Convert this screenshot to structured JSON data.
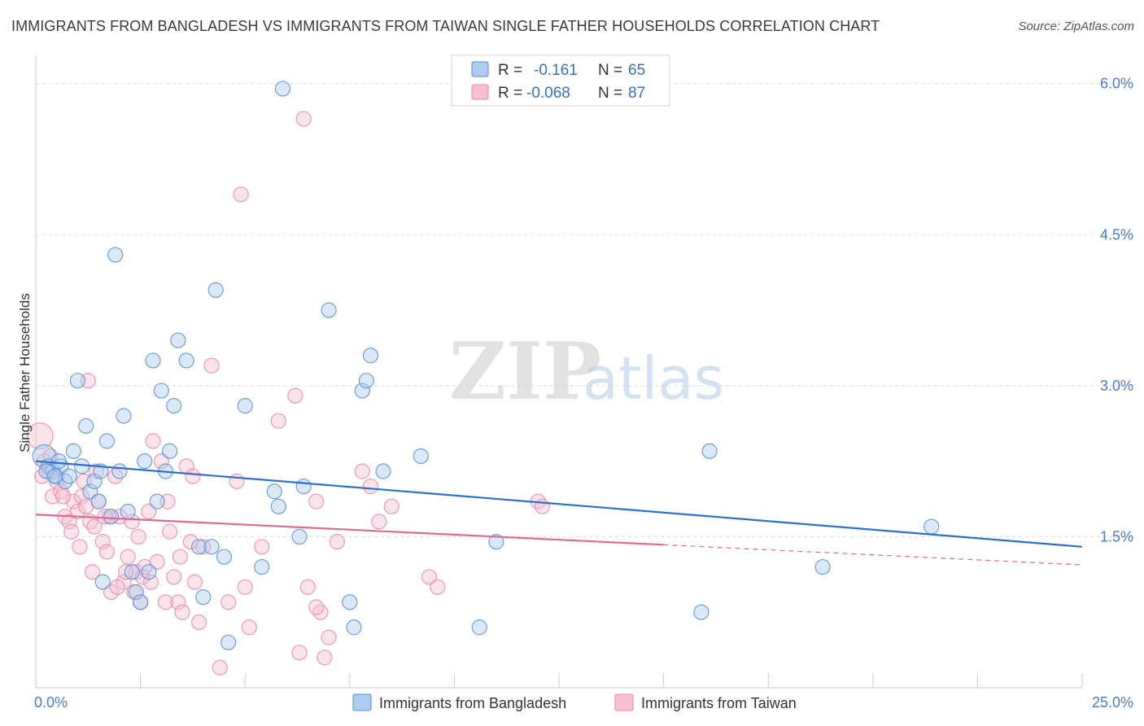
{
  "title": "IMMIGRANTS FROM BANGLADESH VS IMMIGRANTS FROM TAIWAN SINGLE FATHER HOUSEHOLDS CORRELATION CHART",
  "source": "Source: ZipAtlas.com",
  "watermark": {
    "zip": "ZIP",
    "atlas": "atlas"
  },
  "colors": {
    "blue": "#5b8fd6",
    "blue_fill": "#aecbf0",
    "blue_line": "#2d6fd0",
    "pink": "#e98aaa",
    "pink_fill": "#f6c0d2",
    "pink_line": "#e06896"
  },
  "legend": {
    "rows": [
      {
        "r_label": "R =",
        "r_value": "-0.161",
        "n_label": "N =",
        "n_value": "65"
      },
      {
        "r_label": "R =",
        "r_value": "-0.068",
        "n_label": "N =",
        "n_value": "87"
      }
    ]
  },
  "chart_data": {
    "type": "scatter",
    "ylabel": "Single Father Households",
    "xlim": [
      0,
      25
    ],
    "ylim": [
      0,
      6.2
    ],
    "x_tick_labels": [
      "0.0%",
      "25.0%"
    ],
    "y_ticks": [
      1.5,
      3.0,
      4.5,
      6.0
    ],
    "y_tick_labels": [
      "1.5%",
      "3.0%",
      "4.5%",
      "6.0%"
    ],
    "legend_placement": "top-center",
    "grid": true,
    "series": [
      {
        "name": "Immigrants from Bangladesh",
        "color": "#5b8fd6",
        "trend": {
          "x0": 0,
          "y0": 2.25,
          "x1": 25,
          "y1": 1.4,
          "dashed_from": null
        },
        "points": [
          [
            0.2,
            2.3
          ],
          [
            0.3,
            2.2
          ],
          [
            0.4,
            2.15
          ],
          [
            0.5,
            2.1
          ],
          [
            0.6,
            2.2
          ],
          [
            0.7,
            2.05
          ],
          [
            0.8,
            2.1
          ],
          [
            0.9,
            2.35
          ],
          [
            1.0,
            3.05
          ],
          [
            1.1,
            2.2
          ],
          [
            1.2,
            2.6
          ],
          [
            1.3,
            1.95
          ],
          [
            1.4,
            2.05
          ],
          [
            1.5,
            1.85
          ],
          [
            1.6,
            1.05
          ],
          [
            1.7,
            2.45
          ],
          [
            1.8,
            1.7
          ],
          [
            1.9,
            4.3
          ],
          [
            2.0,
            2.15
          ],
          [
            2.1,
            2.7
          ],
          [
            2.2,
            1.75
          ],
          [
            2.3,
            1.15
          ],
          [
            2.4,
            0.95
          ],
          [
            2.5,
            0.85
          ],
          [
            2.6,
            2.25
          ],
          [
            2.7,
            1.15
          ],
          [
            2.8,
            3.25
          ],
          [
            2.9,
            1.85
          ],
          [
            3.0,
            2.95
          ],
          [
            3.1,
            2.15
          ],
          [
            3.2,
            2.35
          ],
          [
            3.3,
            2.8
          ],
          [
            3.4,
            3.45
          ],
          [
            3.6,
            3.25
          ],
          [
            3.9,
            1.4
          ],
          [
            4.0,
            0.9
          ],
          [
            4.2,
            1.4
          ],
          [
            4.3,
            3.95
          ],
          [
            4.5,
            1.3
          ],
          [
            4.6,
            0.45
          ],
          [
            5.0,
            2.8
          ],
          [
            5.4,
            1.2
          ],
          [
            5.7,
            1.95
          ],
          [
            5.8,
            1.8
          ],
          [
            5.9,
            5.95
          ],
          [
            6.4,
            2.0
          ],
          [
            6.3,
            1.5
          ],
          [
            7.0,
            3.75
          ],
          [
            7.5,
            0.85
          ],
          [
            7.6,
            0.6
          ],
          [
            7.8,
            2.95
          ],
          [
            7.9,
            3.05
          ],
          [
            8.0,
            3.3
          ],
          [
            8.3,
            2.15
          ],
          [
            9.2,
            2.3
          ],
          [
            10.6,
            0.6
          ],
          [
            11.0,
            1.45
          ],
          [
            15.9,
            0.75
          ],
          [
            16.1,
            2.35
          ],
          [
            18.8,
            1.2
          ],
          [
            21.4,
            1.6
          ],
          [
            0.25,
            2.15
          ],
          [
            0.55,
            2.25
          ],
          [
            0.45,
            2.1
          ],
          [
            1.55,
            2.15
          ]
        ]
      },
      {
        "name": "Immigrants from Taiwan",
        "color": "#e98aaa",
        "trend": {
          "x0": 0,
          "y0": 1.72,
          "x1": 25,
          "y1": 1.22,
          "dashed_from": 15
        },
        "points": [
          [
            0.1,
            2.5
          ],
          [
            0.2,
            2.25
          ],
          [
            0.3,
            2.15
          ],
          [
            0.4,
            1.9
          ],
          [
            0.5,
            2.05
          ],
          [
            0.6,
            1.95
          ],
          [
            0.7,
            1.7
          ],
          [
            0.8,
            1.65
          ],
          [
            0.9,
            1.85
          ],
          [
            1.0,
            1.75
          ],
          [
            1.1,
            1.9
          ],
          [
            1.2,
            1.8
          ],
          [
            1.3,
            1.65
          ],
          [
            1.4,
            1.6
          ],
          [
            1.5,
            1.85
          ],
          [
            1.6,
            1.45
          ],
          [
            1.7,
            1.35
          ],
          [
            1.8,
            0.95
          ],
          [
            1.9,
            2.1
          ],
          [
            2.0,
            1.7
          ],
          [
            2.1,
            1.05
          ],
          [
            2.2,
            1.3
          ],
          [
            2.3,
            1.65
          ],
          [
            2.4,
            1.15
          ],
          [
            2.5,
            0.85
          ],
          [
            2.6,
            1.2
          ],
          [
            2.7,
            1.75
          ],
          [
            2.8,
            2.45
          ],
          [
            2.9,
            1.25
          ],
          [
            3.0,
            2.25
          ],
          [
            3.1,
            0.85
          ],
          [
            3.2,
            1.55
          ],
          [
            3.3,
            1.1
          ],
          [
            3.4,
            0.85
          ],
          [
            3.5,
            0.75
          ],
          [
            3.6,
            2.2
          ],
          [
            3.7,
            1.45
          ],
          [
            3.8,
            1.05
          ],
          [
            3.9,
            0.65
          ],
          [
            4.0,
            1.4
          ],
          [
            4.2,
            3.2
          ],
          [
            4.4,
            0.2
          ],
          [
            4.6,
            0.85
          ],
          [
            4.8,
            2.05
          ],
          [
            4.9,
            4.9
          ],
          [
            5.0,
            1.0
          ],
          [
            5.1,
            0.6
          ],
          [
            5.4,
            1.4
          ],
          [
            5.8,
            2.65
          ],
          [
            6.2,
            2.9
          ],
          [
            6.3,
            0.35
          ],
          [
            6.4,
            5.65
          ],
          [
            6.5,
            1.0
          ],
          [
            6.7,
            1.85
          ],
          [
            6.8,
            0.75
          ],
          [
            6.9,
            0.3
          ],
          [
            7.0,
            0.5
          ],
          [
            7.2,
            1.45
          ],
          [
            7.8,
            2.15
          ],
          [
            8.0,
            2.0
          ],
          [
            8.2,
            1.65
          ],
          [
            8.5,
            1.8
          ],
          [
            9.4,
            1.1
          ],
          [
            9.6,
            1.0
          ],
          [
            12.0,
            1.85
          ],
          [
            0.15,
            2.1
          ],
          [
            0.35,
            2.3
          ],
          [
            0.65,
            1.9
          ],
          [
            1.15,
            2.05
          ],
          [
            1.75,
            1.7
          ],
          [
            2.15,
            1.15
          ],
          [
            2.35,
            0.95
          ],
          [
            2.55,
            1.1
          ],
          [
            2.75,
            1.05
          ],
          [
            3.15,
            1.85
          ],
          [
            3.45,
            1.3
          ],
          [
            3.75,
            2.1
          ],
          [
            1.25,
            3.05
          ],
          [
            1.45,
            2.15
          ],
          [
            0.85,
            1.55
          ],
          [
            1.05,
            1.4
          ],
          [
            1.35,
            1.15
          ],
          [
            1.65,
            1.7
          ],
          [
            1.95,
            1.0
          ],
          [
            2.45,
            1.5
          ],
          [
            6.7,
            0.8
          ],
          [
            12.1,
            1.8
          ]
        ]
      }
    ]
  }
}
